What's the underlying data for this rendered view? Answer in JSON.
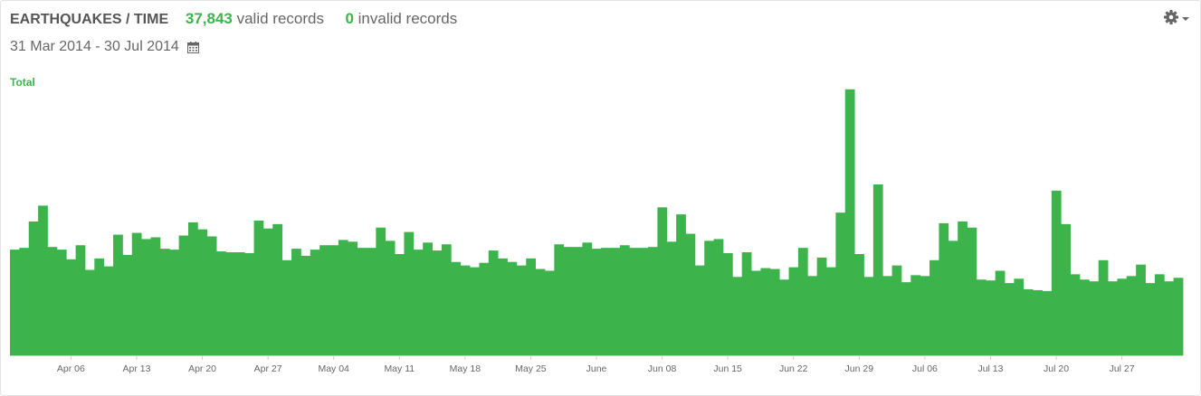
{
  "header": {
    "title": "EARTHQUAKES / TIME",
    "valid_count": "37,843",
    "valid_label": "valid records",
    "invalid_count": "0",
    "invalid_label": "invalid records",
    "date_range": "31 Mar 2014 - 30 Jul 2014"
  },
  "icons": {
    "calendar": "calendar-icon",
    "settings": "gear-icon",
    "dropdown": "caret-down-icon"
  },
  "colors": {
    "bar": "#3cb44b",
    "accent": "#3cb44b",
    "axis": "#cccccc"
  },
  "chart_data": {
    "type": "bar",
    "legend_position": "top-left",
    "grid": false,
    "x_start": "2014-03-31",
    "x_tick_labels": [
      "Apr 06",
      "Apr 13",
      "Apr 20",
      "Apr 27",
      "May 04",
      "May 11",
      "May 18",
      "May 25",
      "June",
      "Jun 08",
      "Jun 15",
      "Jun 22",
      "Jun 29",
      "Jul 06",
      "Jul 13",
      "Jul 20",
      "Jul 27"
    ],
    "x_tick_dates": [
      "2014-04-06",
      "2014-04-13",
      "2014-04-20",
      "2014-04-27",
      "2014-05-04",
      "2014-05-11",
      "2014-05-18",
      "2014-05-25",
      "2014-06-01",
      "2014-06-08",
      "2014-06-15",
      "2014-06-22",
      "2014-06-29",
      "2014-07-06",
      "2014-07-13",
      "2014-07-20",
      "2014-07-27"
    ],
    "ylim": [
      0,
      310
    ],
    "series": [
      {
        "name": "Total",
        "values": [
          120,
          122,
          152,
          170,
          123,
          120,
          109,
          125,
          97,
          110,
          101,
          137,
          114,
          139,
          132,
          134,
          121,
          120,
          136,
          151,
          143,
          135,
          118,
          117,
          117,
          116,
          153,
          144,
          149,
          108,
          121,
          113,
          120,
          125,
          125,
          131,
          129,
          122,
          122,
          145,
          130,
          115,
          140,
          120,
          128,
          119,
          126,
          106,
          102,
          100,
          105,
          119,
          110,
          106,
          102,
          110,
          98,
          96,
          126,
          123,
          123,
          128,
          121,
          122,
          122,
          125,
          122,
          122,
          123,
          168,
          129,
          160,
          138,
          102,
          130,
          132,
          116,
          89,
          117,
          96,
          99,
          98,
          86,
          100,
          122,
          90,
          111,
          100,
          162,
          302,
          115,
          89,
          194,
          90,
          102,
          83,
          91,
          90,
          108,
          150,
          130,
          152,
          145,
          86,
          85,
          96,
          82,
          87,
          75,
          74,
          73,
          187,
          149,
          92,
          86,
          84,
          108,
          84,
          87,
          90,
          103,
          82,
          92,
          84,
          88
        ]
      }
    ]
  }
}
